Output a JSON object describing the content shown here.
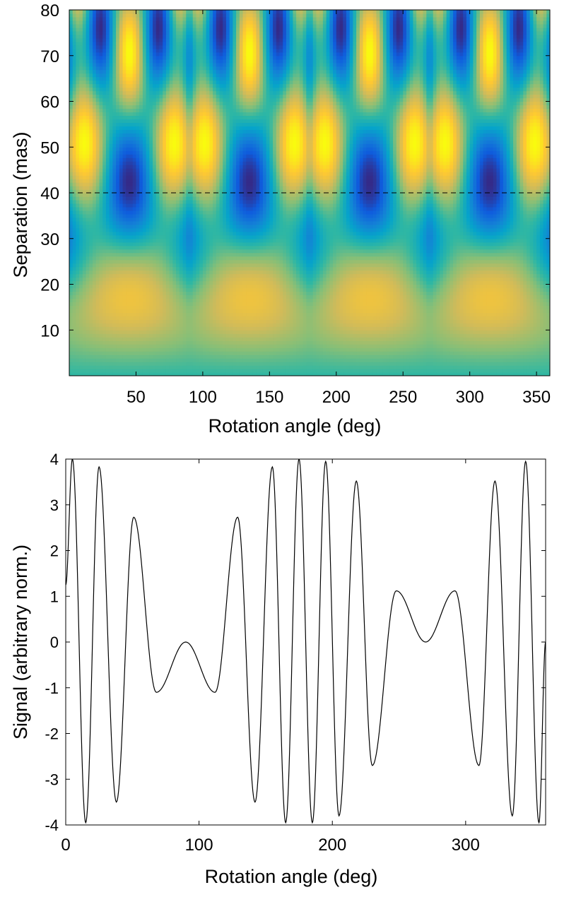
{
  "chart_data": [
    {
      "type": "heatmap",
      "title": "",
      "xlabel": "Rotation angle (deg)",
      "ylabel": "Separation (mas)",
      "xlim": [
        0,
        360
      ],
      "ylim": [
        0,
        80
      ],
      "xticks": [
        50,
        100,
        150,
        200,
        250,
        300,
        350
      ],
      "yticks": [
        10,
        20,
        30,
        40,
        50,
        60,
        70,
        80
      ],
      "grid": false,
      "colormap": "parula",
      "colormap_colors": [
        "#352a87",
        "#0f5cdd",
        "#1481d6",
        "#06a4ca",
        "#2eb7a4",
        "#87bf77",
        "#d1bb59",
        "#fec832",
        "#f9fb0e"
      ],
      "reference_line": {
        "y": 40,
        "style": "dashed"
      }
    },
    {
      "type": "line",
      "title": "",
      "xlabel": "Rotation angle (deg)",
      "ylabel": "Signal (arbitrary norm.)",
      "xlim": [
        0,
        360
      ],
      "ylim": [
        -4,
        4
      ],
      "xticks": [
        0,
        100,
        200,
        300
      ],
      "yticks": [
        4,
        3,
        2,
        1,
        0,
        -1,
        -2,
        -3,
        -4
      ],
      "ytick_labels": [
        "4",
        "3",
        "2",
        "1",
        "0",
        "-1",
        "-2",
        "-3",
        "-4"
      ],
      "grid": false,
      "series": [
        {
          "color": "#000000",
          "points": [
            [
              0,
              1.25
            ],
            [
              5,
              4.0
            ],
            [
              15,
              -3.95
            ],
            [
              25,
              3.83
            ],
            [
              38,
              -3.5
            ],
            [
              51,
              2.73
            ],
            [
              68,
              -1.1
            ],
            [
              90,
              0
            ],
            [
              112,
              -1.1
            ],
            [
              129,
              2.73
            ],
            [
              142,
              -3.5
            ],
            [
              155,
              3.83
            ],
            [
              165,
              -3.95
            ],
            [
              175,
              4.0
            ],
            [
              185,
              -3.95
            ],
            [
              195,
              3.95
            ],
            [
              205,
              -3.8
            ],
            [
              218,
              3.52
            ],
            [
              230,
              -2.7
            ],
            [
              248,
              1.12
            ],
            [
              270,
              0
            ],
            [
              292,
              1.12
            ],
            [
              310,
              -2.7
            ],
            [
              322,
              3.52
            ],
            [
              335,
              -3.8
            ],
            [
              345,
              3.95
            ],
            [
              355,
              -3.95
            ],
            [
              360,
              0
            ]
          ]
        }
      ]
    }
  ]
}
